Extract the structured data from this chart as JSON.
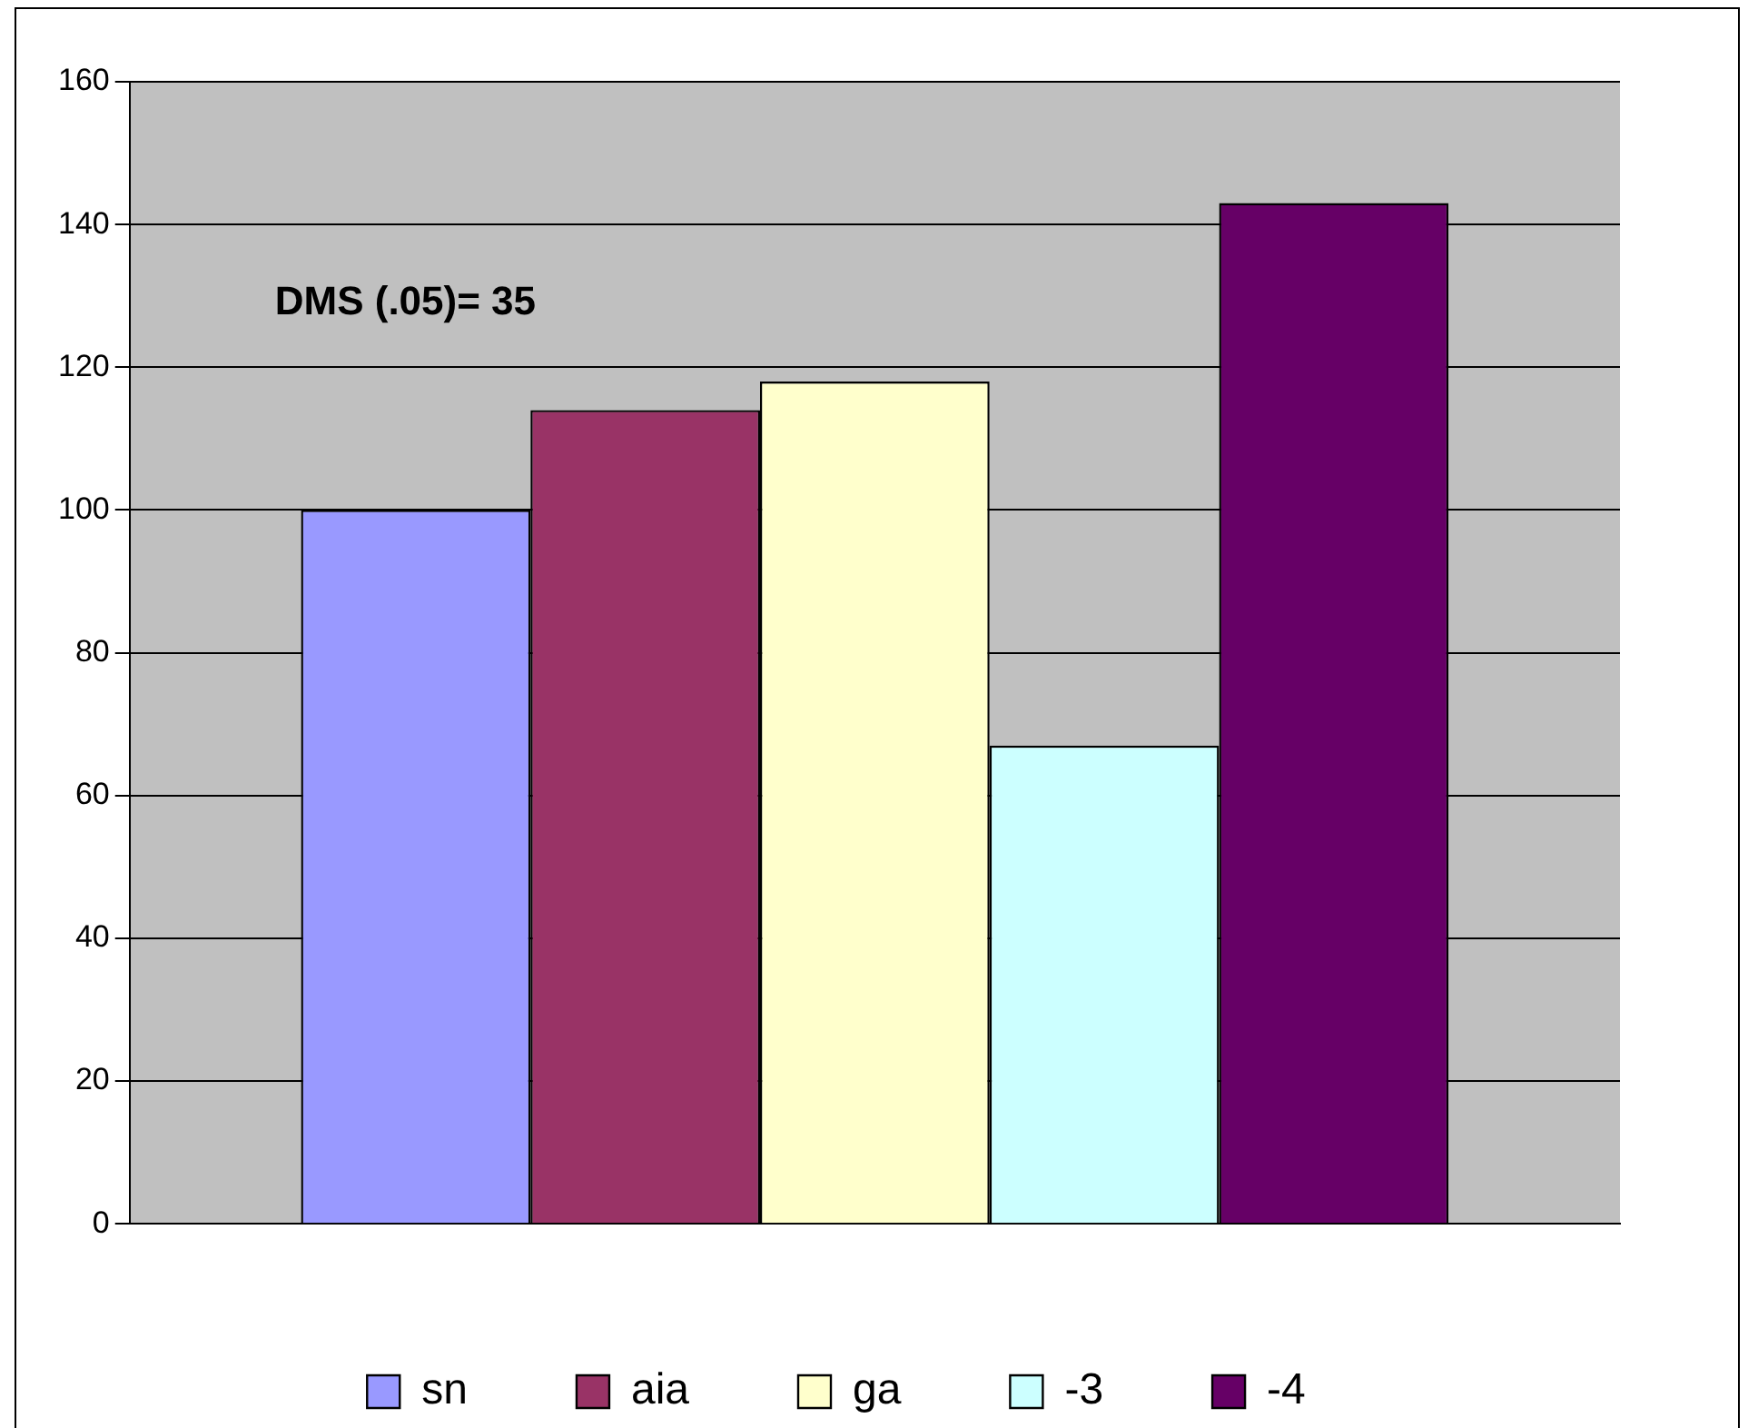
{
  "chart_data": {
    "type": "bar",
    "categories": [
      null
    ],
    "series": [
      {
        "name": "sn",
        "color": "#9999ff",
        "values": [
          100
        ]
      },
      {
        "name": "aia",
        "color": "#993366",
        "values": [
          114
        ]
      },
      {
        "name": "ga",
        "color": "#ffffcc",
        "values": [
          118
        ]
      },
      {
        "name": "-3",
        "color": "#ccffff",
        "values": [
          67
        ]
      },
      {
        "name": "-4",
        "color": "#660066",
        "values": [
          143
        ]
      }
    ],
    "ylim": [
      0,
      160
    ],
    "yticks": [
      0,
      20,
      40,
      60,
      80,
      100,
      120,
      140,
      160
    ],
    "grid": "y",
    "legend": "bottom",
    "annotations": [
      "DMS (.05)= 35"
    ]
  }
}
